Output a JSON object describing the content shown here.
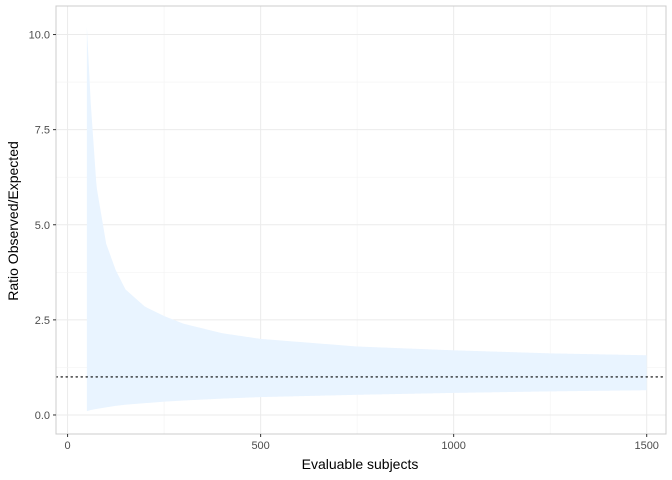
{
  "chart_data": {
    "type": "area",
    "title": "",
    "xlabel": "Evaluable subjects",
    "ylabel": "Ratio Observed/Expected",
    "xlim": [
      -30,
      1550
    ],
    "ylim": [
      -0.5,
      10.75
    ],
    "x_ticks": [
      0,
      500,
      1000,
      1500
    ],
    "x_tick_labels": [
      "0",
      "500",
      "1000",
      "1500"
    ],
    "y_ticks": [
      0,
      2.5,
      5,
      7.5,
      10
    ],
    "y_tick_labels": [
      "0.0",
      "2.5",
      "5.0",
      "7.5",
      "10.0"
    ],
    "grid": true,
    "reference_line": {
      "y": 1,
      "style": "dotted"
    },
    "band": {
      "color": "#e9f4ff",
      "x": [
        50,
        60,
        75,
        100,
        125,
        150,
        200,
        250,
        300,
        400,
        500,
        750,
        1000,
        1250,
        1500
      ],
      "lower": [
        0.1,
        0.13,
        0.16,
        0.2,
        0.24,
        0.27,
        0.31,
        0.35,
        0.38,
        0.43,
        0.47,
        0.53,
        0.58,
        0.62,
        0.65
      ],
      "upper": [
        10.2,
        8.2,
        6.0,
        4.5,
        3.8,
        3.3,
        2.85,
        2.6,
        2.4,
        2.15,
        2.0,
        1.8,
        1.7,
        1.62,
        1.57
      ]
    }
  }
}
